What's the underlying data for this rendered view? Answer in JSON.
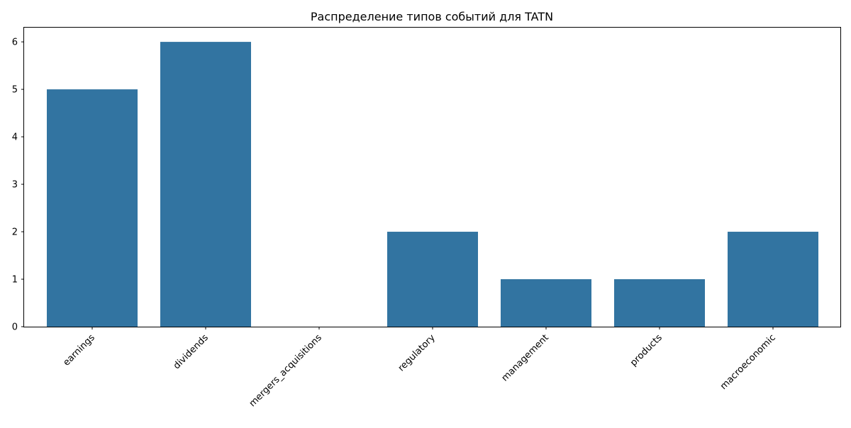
{
  "chart_data": {
    "type": "bar",
    "title": "Распределение типов событий для TATN",
    "xlabel": "",
    "ylabel": "",
    "categories": [
      "earnings",
      "dividends",
      "mergers_acquisitions",
      "regulatory",
      "management",
      "products",
      "macroeconomic"
    ],
    "values": [
      5,
      6,
      0,
      2,
      1,
      1,
      2
    ],
    "ylim": [
      0,
      6.3
    ],
    "yticks": [
      0,
      1,
      2,
      3,
      4,
      5,
      6
    ],
    "bar_color": "#3274a1",
    "grid": false,
    "legend": "none"
  }
}
